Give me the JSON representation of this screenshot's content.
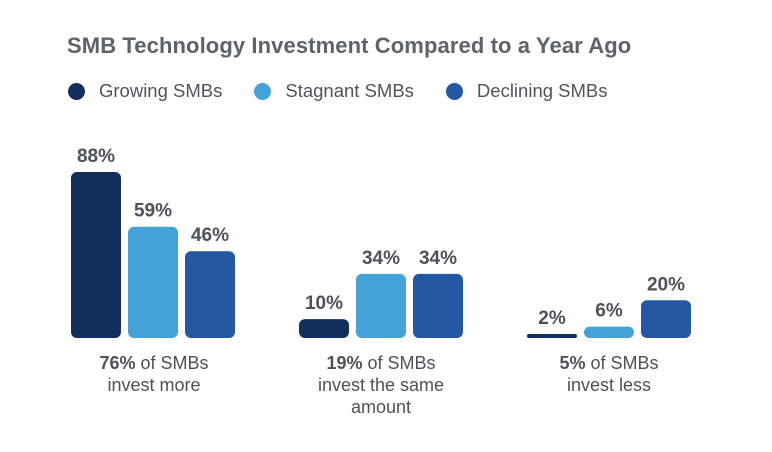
{
  "chart_data": {
    "type": "bar",
    "title": "SMB Technology Investment Compared to a Year Ago",
    "categories": [
      "invest more",
      "invest the same amount",
      "invest less"
    ],
    "series": [
      {
        "name": "Growing SMBs",
        "color": "#132f5e",
        "values": [
          88,
          10,
          2
        ],
        "labels": [
          "88%",
          "10%",
          "2%"
        ]
      },
      {
        "name": "Stagnant SMBs",
        "color": "#45a2d8",
        "values": [
          59,
          34,
          6
        ],
        "labels": [
          "59%",
          "34%",
          "6%"
        ]
      },
      {
        "name": "Declining SMBs",
        "color": "#2458a3",
        "values": [
          46,
          34,
          20
        ],
        "labels": [
          "46%",
          "34%",
          "20%"
        ]
      }
    ],
    "group_captions": [
      {
        "share": "76%",
        "line1": " of SMBs",
        "line2": "invest more",
        "line3": ""
      },
      {
        "share": "19%",
        "line1": " of SMBs",
        "line2": "invest the same",
        "line3": "amount"
      },
      {
        "share": "5%",
        "line1": " of SMBs",
        "line2": "invest less",
        "line3": ""
      }
    ],
    "ylim": [
      0,
      88
    ],
    "grid": false,
    "legend_position": "top-left"
  }
}
